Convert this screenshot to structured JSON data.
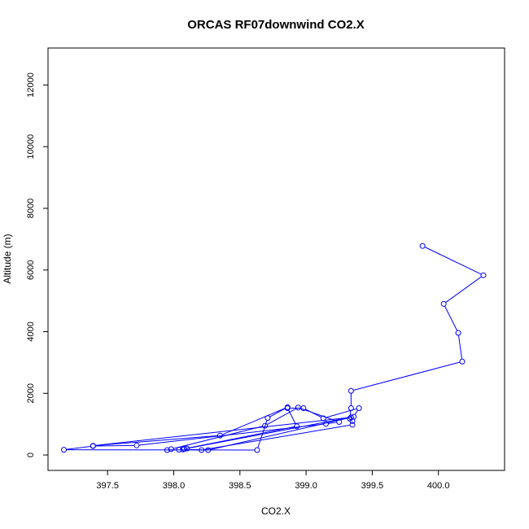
{
  "chart_data": {
    "type": "line",
    "title": "ORCAS RF07downwind CO2.X",
    "xlabel": "CO2.X",
    "ylabel": "Altitude (m)",
    "xlim": [
      397.05,
      400.5
    ],
    "ylim": [
      -500,
      13200
    ],
    "x_ticks": [
      397.5,
      398.0,
      398.5,
      399.0,
      399.5,
      400.0
    ],
    "x_tick_labels": [
      "397.5",
      "398.0",
      "398.5",
      "399.0",
      "399.5",
      "400.0"
    ],
    "y_ticks": [
      0,
      2000,
      4000,
      6000,
      8000,
      10000,
      12000
    ],
    "y_tick_labels": [
      "0",
      "2000",
      "4000",
      "6000",
      "8000",
      "10000",
      "12000"
    ],
    "grid": false,
    "legend": "none",
    "series_color": "#0000ff",
    "points": [
      {
        "x": 399.88,
        "y": 6780
      },
      {
        "x": 400.34,
        "y": 5830
      },
      {
        "x": 400.04,
        "y": 4900
      },
      {
        "x": 400.15,
        "y": 3960
      },
      {
        "x": 400.18,
        "y": 3030
      },
      {
        "x": 399.34,
        "y": 2080
      },
      {
        "x": 399.34,
        "y": 1520
      },
      {
        "x": 399.33,
        "y": 1180
      },
      {
        "x": 399.35,
        "y": 1100
      },
      {
        "x": 399.35,
        "y": 980
      },
      {
        "x": 398.21,
        "y": 160
      },
      {
        "x": 398.07,
        "y": 180
      },
      {
        "x": 398.26,
        "y": 160
      },
      {
        "x": 399.34,
        "y": 1220
      },
      {
        "x": 397.39,
        "y": 300
      },
      {
        "x": 398.35,
        "y": 630
      },
      {
        "x": 398.86,
        "y": 1550
      },
      {
        "x": 398.71,
        "y": 1200
      },
      {
        "x": 398.63,
        "y": 160
      },
      {
        "x": 397.17,
        "y": 170
      },
      {
        "x": 397.39,
        "y": 290
      },
      {
        "x": 397.72,
        "y": 310
      },
      {
        "x": 399.15,
        "y": 1010
      },
      {
        "x": 399.25,
        "y": 1070
      },
      {
        "x": 398.94,
        "y": 1540
      },
      {
        "x": 398.69,
        "y": 950
      },
      {
        "x": 397.98,
        "y": 190
      },
      {
        "x": 397.95,
        "y": 160
      },
      {
        "x": 398.04,
        "y": 170
      },
      {
        "x": 398.08,
        "y": 200
      },
      {
        "x": 398.93,
        "y": 930
      },
      {
        "x": 398.86,
        "y": 1520
      },
      {
        "x": 398.98,
        "y": 1520
      },
      {
        "x": 399.13,
        "y": 1190
      },
      {
        "x": 399.4,
        "y": 1520
      },
      {
        "x": 399.36,
        "y": 1240
      },
      {
        "x": 398.1,
        "y": 210
      }
    ]
  }
}
